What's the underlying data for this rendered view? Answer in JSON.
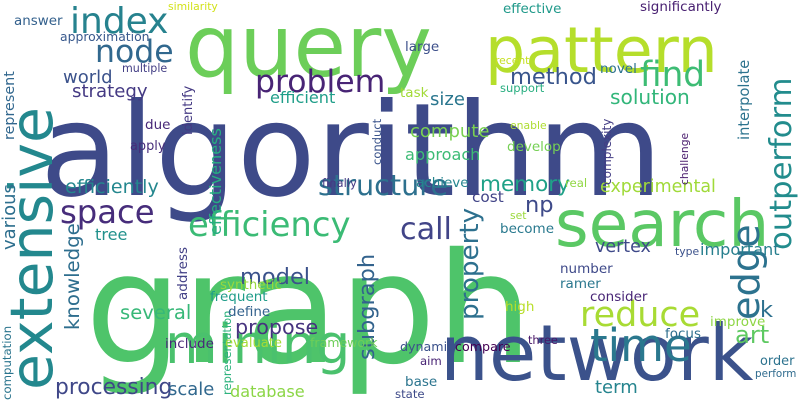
{
  "words": [
    {
      "text": "graph",
      "color": "#4ec46a"
    },
    {
      "text": "algorithm",
      "color": "#3e4a89"
    },
    {
      "text": "query",
      "color": "#6cce59"
    },
    {
      "text": "network",
      "color": "#3b528b"
    },
    {
      "text": "extensive",
      "color": "#23888e"
    },
    {
      "text": "pattern",
      "color": "#b5de2b"
    },
    {
      "text": "search",
      "color": "#5ac864"
    },
    {
      "text": "edge",
      "color": "#2c728e"
    },
    {
      "text": "mining",
      "color": "#4ac16d"
    },
    {
      "text": "structure",
      "color": "#2d708e"
    },
    {
      "text": "efficiency",
      "color": "#3bbb75"
    },
    {
      "text": "problem",
      "color": "#482475"
    },
    {
      "text": "time",
      "color": "#2a788e"
    },
    {
      "text": "index",
      "color": "#26828e"
    },
    {
      "text": "find",
      "color": "#3dbc74"
    },
    {
      "text": "node",
      "color": "#31688e"
    },
    {
      "text": "call",
      "color": "#414487"
    },
    {
      "text": "space",
      "color": "#472d7b"
    },
    {
      "text": "reduce",
      "color": "#a8db34"
    },
    {
      "text": "art",
      "color": "#5ec962"
    },
    {
      "text": "solution",
      "color": "#32b67a"
    },
    {
      "text": "outperform",
      "color": "#228c8d"
    },
    {
      "text": "efficiently",
      "color": "#24878e"
    },
    {
      "text": "experimental",
      "color": "#a0da39"
    },
    {
      "text": "method",
      "color": "#39558c"
    },
    {
      "text": "property",
      "color": "#2d708e"
    },
    {
      "text": "memory",
      "color": "#1fa187"
    },
    {
      "text": "approach",
      "color": "#3cbb75"
    },
    {
      "text": "compute",
      "color": "#7ad151"
    },
    {
      "text": "world",
      "color": "#3b528b"
    },
    {
      "text": "strategy",
      "color": "#443983"
    },
    {
      "text": "efficient",
      "color": "#1f9e89"
    },
    {
      "text": "size",
      "color": "#2a768e"
    },
    {
      "text": "effectiveness",
      "color": "#26ad81"
    },
    {
      "text": "knowledge",
      "color": "#2e6e8e"
    },
    {
      "text": "model",
      "color": "#3b528b"
    },
    {
      "text": "subgraph",
      "color": "#33638d"
    },
    {
      "text": "several",
      "color": "#37b878"
    },
    {
      "text": "propose",
      "color": "#46337f"
    },
    {
      "text": "processing",
      "color": "#3f4788"
    },
    {
      "text": "scale",
      "color": "#31688e"
    },
    {
      "text": "database",
      "color": "#8bd646"
    },
    {
      "text": "term",
      "color": "#25848e"
    },
    {
      "text": "vertex",
      "color": "#3e4989"
    },
    {
      "text": "important",
      "color": "#277f8e"
    },
    {
      "text": "np",
      "color": "#3e4a89"
    },
    {
      "text": "cost",
      "color": "#414487"
    },
    {
      "text": "k",
      "color": "#2d708e"
    },
    {
      "text": "tree",
      "color": "#21918c"
    },
    {
      "text": "various",
      "color": "#2e6f8e"
    },
    {
      "text": "represent",
      "color": "#31678e"
    },
    {
      "text": "similarity",
      "color": "#d2e21b"
    },
    {
      "text": "answer",
      "color": "#34618d"
    },
    {
      "text": "approximation",
      "color": "#38588c"
    },
    {
      "text": "multiple",
      "color": "#433e85"
    },
    {
      "text": "identify",
      "color": "#443983"
    },
    {
      "text": "representation",
      "color": "#2db27d"
    },
    {
      "text": "due",
      "color": "#482878"
    },
    {
      "text": "apply",
      "color": "#472d7b"
    },
    {
      "text": "finally",
      "color": "#443a83"
    },
    {
      "text": "conduct",
      "color": "#3a538b"
    },
    {
      "text": "develop",
      "color": "#75d054"
    },
    {
      "text": "enable",
      "color": "#addc30"
    },
    {
      "text": "complexity",
      "color": "#433d84"
    },
    {
      "text": "challenge",
      "color": "#481b6d"
    },
    {
      "text": "real",
      "color": "#90d743"
    },
    {
      "text": "achieve",
      "color": "#25858e"
    },
    {
      "text": "effective",
      "color": "#1f998a"
    },
    {
      "text": "significantly",
      "color": "#482071"
    },
    {
      "text": "large",
      "color": "#3c4f8a"
    },
    {
      "text": "novel",
      "color": "#2c728e"
    },
    {
      "text": "recent",
      "color": "#c5e021"
    },
    {
      "text": "support",
      "color": "#28ae80"
    },
    {
      "text": "interpolate",
      "color": "#2c738e"
    },
    {
      "text": "task",
      "color": "#a2da37"
    },
    {
      "text": "set",
      "color": "#9bd93c"
    },
    {
      "text": "become",
      "color": "#29798e"
    },
    {
      "text": "address",
      "color": "#424086"
    },
    {
      "text": "synthetic",
      "color": "#98d83e"
    },
    {
      "text": "define",
      "color": "#33628d"
    },
    {
      "text": "frequent",
      "color": "#1e9c89"
    },
    {
      "text": "number",
      "color": "#3e4989"
    },
    {
      "text": "ramer",
      "color": "#2a778e"
    },
    {
      "text": "consider",
      "color": "#482576"
    },
    {
      "text": "high",
      "color": "#b8de29"
    },
    {
      "text": "type",
      "color": "#3b518b"
    },
    {
      "text": "improve",
      "color": "#8ed645"
    },
    {
      "text": "focus",
      "color": "#2e6e8e"
    },
    {
      "text": "computation",
      "color": "#2b758e"
    },
    {
      "text": "include",
      "color": "#482878"
    },
    {
      "text": "evaluate",
      "color": "#a5db36"
    },
    {
      "text": "framework",
      "color": "#6ece58"
    },
    {
      "text": "dynamic",
      "color": "#3b518b"
    },
    {
      "text": "aim",
      "color": "#482475"
    },
    {
      "text": "compare",
      "color": "#440154"
    },
    {
      "text": "three",
      "color": "#481668"
    },
    {
      "text": "order",
      "color": "#2c728e"
    },
    {
      "text": "perform",
      "color": "#2f6b8e"
    },
    {
      "text": "base",
      "color": "#2b748e"
    },
    {
      "text": "state",
      "color": "#3e4a89"
    }
  ]
}
